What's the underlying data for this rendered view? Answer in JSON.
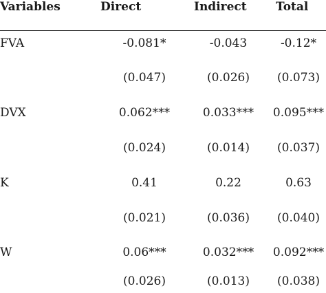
{
  "table": {
    "headers": [
      "Variables",
      "Direct",
      "Indirect",
      "Total"
    ],
    "rows": [
      {
        "variable": "FVA",
        "direct": "-0.081*",
        "indirect": "-0.043",
        "total": "-0.12*"
      },
      {
        "variable": "",
        "direct": "(0.047)",
        "indirect": "(0.026)",
        "total": "(0.073)"
      },
      {
        "variable": "DVX",
        "direct": "0.062***",
        "indirect": "0.033***",
        "total": "0.095***"
      },
      {
        "variable": "",
        "direct": "(0.024)",
        "indirect": "(0.014)",
        "total": "(0.037)"
      },
      {
        "variable": "K",
        "direct": "0.41",
        "indirect": "0.22",
        "total": "0.63"
      },
      {
        "variable": "",
        "direct": "(0.021)",
        "indirect": "(0.036)",
        "total": "(0.040)"
      },
      {
        "variable": "W",
        "direct": "0.06***",
        "indirect": "0.032***",
        "total": "0.092***"
      },
      {
        "variable": "",
        "direct": "(0.026)",
        "indirect": "(0.013)",
        "total": "(0.038)"
      }
    ]
  }
}
